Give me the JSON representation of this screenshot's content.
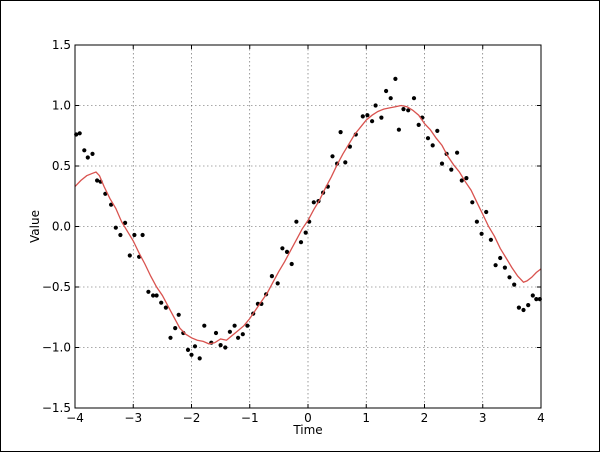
{
  "chart_data": {
    "type": "scatter",
    "title": "",
    "xlabel": "Time",
    "ylabel": "Value",
    "xlim": [
      -4,
      4
    ],
    "ylim": [
      -1.5,
      1.5
    ],
    "grid": true,
    "xticks": [
      -4,
      -3,
      -2,
      -1,
      0,
      1,
      2,
      3,
      4
    ],
    "xtick_labels": [
      "−4",
      "−3",
      "−2",
      "−1",
      "0",
      "1",
      "2",
      "3",
      "4"
    ],
    "yticks": [
      -1.5,
      -1.0,
      -0.5,
      0.0,
      0.5,
      1.0,
      1.5
    ],
    "ytick_labels": [
      "−1.5",
      "−1.0",
      "−0.5",
      "0.0",
      "0.5",
      "1.0",
      "1.5"
    ],
    "colors": {
      "points": "#000000",
      "line": "#d9534f"
    },
    "series": [
      {
        "kind": "points",
        "x": [
          -3.98,
          -3.92,
          -3.84,
          -3.78,
          -3.7,
          -3.62,
          -3.56,
          -3.48,
          -3.38,
          -3.3,
          -3.22,
          -3.14,
          -3.06,
          -2.98,
          -2.9,
          -2.84,
          -2.74,
          -2.66,
          -2.6,
          -2.52,
          -2.44,
          -2.36,
          -2.28,
          -2.22,
          -2.14,
          -2.06,
          -2.0,
          -1.94,
          -1.86,
          -1.78,
          -1.66,
          -1.58,
          -1.5,
          -1.42,
          -1.34,
          -1.26,
          -1.2,
          -1.12,
          -1.04,
          -0.94,
          -0.86,
          -0.8,
          -0.72,
          -0.62,
          -0.52,
          -0.44,
          -0.36,
          -0.28,
          -0.2,
          -0.12,
          -0.04,
          0.02,
          0.1,
          0.18,
          0.26,
          0.34,
          0.42,
          0.5,
          0.56,
          0.64,
          0.72,
          0.82,
          0.94,
          1.02,
          1.1,
          1.16,
          1.26,
          1.34,
          1.42,
          1.5,
          1.56,
          1.64,
          1.72,
          1.82,
          1.9,
          1.96,
          2.06,
          2.14,
          2.22,
          2.3,
          2.38,
          2.46,
          2.56,
          2.64,
          2.72,
          2.82,
          2.9,
          2.98,
          3.06,
          3.14,
          3.22,
          3.3,
          3.38,
          3.46,
          3.54,
          3.62,
          3.7,
          3.78,
          3.86,
          3.92,
          3.98
        ],
        "y": [
          0.76,
          0.77,
          0.63,
          0.57,
          0.6,
          0.38,
          0.37,
          0.27,
          0.18,
          -0.01,
          -0.07,
          0.03,
          -0.24,
          -0.07,
          -0.25,
          -0.07,
          -0.54,
          -0.57,
          -0.57,
          -0.63,
          -0.67,
          -0.92,
          -0.84,
          -0.73,
          -0.88,
          -1.02,
          -1.06,
          -0.99,
          -1.09,
          -0.82,
          -0.96,
          -0.88,
          -0.98,
          -1.0,
          -0.87,
          -0.82,
          -0.92,
          -0.89,
          -0.82,
          -0.72,
          -0.64,
          -0.64,
          -0.56,
          -0.41,
          -0.47,
          -0.18,
          -0.21,
          -0.31,
          0.04,
          -0.13,
          -0.05,
          0.04,
          0.2,
          0.21,
          0.28,
          0.33,
          0.58,
          0.52,
          0.78,
          0.53,
          0.66,
          0.76,
          0.91,
          0.92,
          0.87,
          1.0,
          0.9,
          1.12,
          1.06,
          1.22,
          0.8,
          0.97,
          0.96,
          1.06,
          0.84,
          0.9,
          0.73,
          0.67,
          0.79,
          0.52,
          0.6,
          0.47,
          0.61,
          0.38,
          0.4,
          0.2,
          0.04,
          -0.06,
          0.12,
          -0.11,
          -0.32,
          -0.26,
          -0.34,
          -0.42,
          -0.48,
          -0.67,
          -0.69,
          -0.65,
          -0.57,
          -0.6,
          -0.6
        ]
      },
      {
        "kind": "line",
        "x": [
          -4.0,
          -3.9,
          -3.8,
          -3.7,
          -3.64,
          -3.58,
          -3.5,
          -3.4,
          -3.3,
          -3.2,
          -3.1,
          -3.0,
          -2.9,
          -2.8,
          -2.7,
          -2.6,
          -2.5,
          -2.4,
          -2.3,
          -2.2,
          -2.1,
          -2.0,
          -1.9,
          -1.8,
          -1.7,
          -1.6,
          -1.5,
          -1.4,
          -1.3,
          -1.2,
          -1.1,
          -1.0,
          -0.9,
          -0.8,
          -0.7,
          -0.6,
          -0.5,
          -0.4,
          -0.3,
          -0.2,
          -0.1,
          0.0,
          0.1,
          0.2,
          0.3,
          0.4,
          0.5,
          0.6,
          0.7,
          0.8,
          0.9,
          1.0,
          1.1,
          1.2,
          1.3,
          1.4,
          1.5,
          1.6,
          1.7,
          1.8,
          1.9,
          2.0,
          2.1,
          2.2,
          2.3,
          2.4,
          2.5,
          2.6,
          2.7,
          2.8,
          2.9,
          3.0,
          3.1,
          3.2,
          3.3,
          3.4,
          3.5,
          3.6,
          3.7,
          3.76,
          3.84,
          3.92,
          4.0
        ],
        "y": [
          0.33,
          0.38,
          0.42,
          0.44,
          0.45,
          0.42,
          0.33,
          0.23,
          0.15,
          0.04,
          -0.04,
          -0.12,
          -0.22,
          -0.31,
          -0.41,
          -0.5,
          -0.57,
          -0.66,
          -0.75,
          -0.84,
          -0.89,
          -0.92,
          -0.94,
          -0.95,
          -0.97,
          -0.96,
          -0.93,
          -0.94,
          -0.9,
          -0.86,
          -0.82,
          -0.76,
          -0.69,
          -0.62,
          -0.55,
          -0.46,
          -0.37,
          -0.29,
          -0.2,
          -0.11,
          -0.02,
          0.05,
          0.14,
          0.22,
          0.32,
          0.41,
          0.51,
          0.6,
          0.68,
          0.76,
          0.82,
          0.88,
          0.92,
          0.95,
          0.97,
          0.98,
          0.99,
          1.0,
          0.99,
          0.96,
          0.92,
          0.85,
          0.8,
          0.73,
          0.67,
          0.58,
          0.51,
          0.45,
          0.37,
          0.3,
          0.2,
          0.1,
          0.0,
          -0.08,
          -0.18,
          -0.26,
          -0.34,
          -0.41,
          -0.46,
          -0.45,
          -0.42,
          -0.38,
          -0.35
        ]
      }
    ]
  }
}
